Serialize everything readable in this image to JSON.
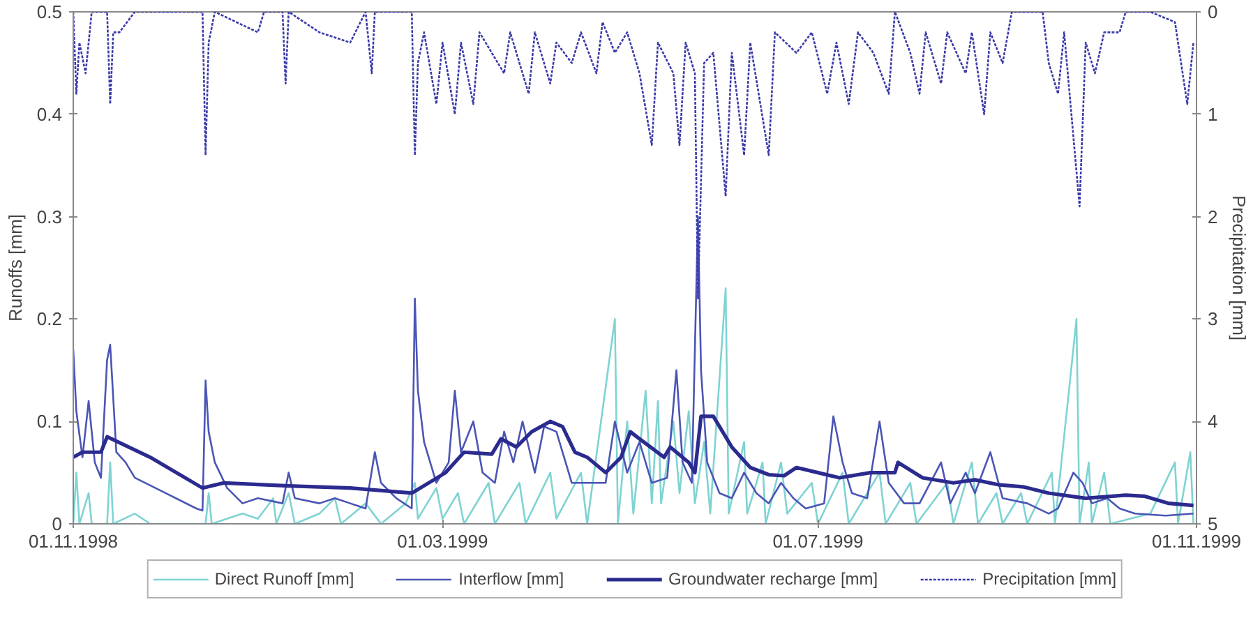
{
  "chart_data": {
    "type": "line",
    "ylabel": "Runoffs [mm]",
    "y2label": "Precipitation [mm]",
    "xlim": [
      "1998-11-01",
      "1999-11-01"
    ],
    "xticks": [
      {
        "value": "1998-11-01",
        "label": "01.11.1998"
      },
      {
        "value": "1999-03-01",
        "label": "01.03.1999"
      },
      {
        "value": "1999-07-01",
        "label": "01.07.1999"
      },
      {
        "value": "1999-11-01",
        "label": "01.11.1999"
      }
    ],
    "ylim": [
      0,
      0.5
    ],
    "yticks": [
      0,
      0.1,
      0.2,
      0.3,
      0.4,
      0.5
    ],
    "y2lim": [
      5,
      0
    ],
    "y2ticks": [
      0,
      1,
      2,
      3,
      4,
      5
    ],
    "grid": false,
    "legend": "bottom",
    "marker": "none",
    "series": [
      {
        "name": "Direct Runoff [mm]",
        "color": "#7fd3d3",
        "line_style": "solid",
        "x": [
          "1998-11-01",
          "1998-11-02",
          "1998-11-03",
          "1998-11-06",
          "1998-11-07",
          "1998-11-12",
          "1998-11-13",
          "1998-11-14",
          "1998-11-21",
          "1998-11-26",
          "1998-12-14",
          "1998-12-15",
          "1998-12-16",
          "1998-12-26",
          "1998-12-31",
          "1999-01-05",
          "1999-01-06",
          "1999-01-10",
          "1999-01-12",
          "1999-01-20",
          "1999-01-25",
          "1999-01-27",
          "1999-02-04",
          "1999-02-09",
          "1999-02-17",
          "1999-02-20",
          "1999-02-21",
          "1999-02-27",
          "1999-03-01",
          "1999-03-06",
          "1999-03-08",
          "1999-03-16",
          "1999-03-18",
          "1999-03-26",
          "1999-03-28",
          "1999-04-05",
          "1999-04-07",
          "1999-04-15",
          "1999-04-17",
          "1999-04-26",
          "1999-04-27",
          "1999-04-30",
          "1999-05-02",
          "1999-05-06",
          "1999-05-08",
          "1999-05-10",
          "1999-05-11",
          "1999-05-15",
          "1999-05-17",
          "1999-05-20",
          "1999-05-22",
          "1999-05-25",
          "1999-05-27",
          "1999-06-01",
          "1999-06-02",
          "1999-06-07",
          "1999-06-08",
          "1999-06-13",
          "1999-06-14",
          "1999-06-19",
          "1999-06-21",
          "1999-06-29",
          "1999-07-01",
          "1999-07-09",
          "1999-07-11",
          "1999-07-21",
          "1999-07-23",
          "1999-07-31",
          "1999-08-02",
          "1999-08-12",
          "1999-08-14",
          "1999-08-20",
          "1999-08-22",
          "1999-08-28",
          "1999-08-30",
          "1999-09-05",
          "1999-09-07",
          "1999-09-15",
          "1999-09-16",
          "1999-09-23",
          "1999-09-24",
          "1999-09-27",
          "1999-09-28",
          "1999-10-02",
          "1999-10-04",
          "1999-10-17",
          "1999-10-25",
          "1999-10-26",
          "1999-10-30",
          "1999-10-31"
        ],
        "values": [
          0,
          0.05,
          0,
          0.03,
          0,
          0,
          0.06,
          0,
          0.01,
          0,
          0,
          0.03,
          0,
          0.01,
          0.005,
          0.025,
          0,
          0.03,
          0,
          0.01,
          0.025,
          0,
          0.02,
          0,
          0.02,
          0.04,
          0.005,
          0.035,
          0.005,
          0.03,
          0,
          0.04,
          0,
          0.04,
          0,
          0.05,
          0.005,
          0.05,
          0,
          0.2,
          0,
          0.1,
          0.01,
          0.13,
          0.02,
          0.12,
          0.02,
          0.1,
          0.03,
          0.11,
          0.02,
          0.08,
          0.01,
          0.23,
          0.01,
          0.08,
          0.01,
          0.06,
          0,
          0.06,
          0.01,
          0.04,
          0,
          0.05,
          0,
          0.05,
          0,
          0.04,
          0,
          0.04,
          0,
          0.06,
          0,
          0.03,
          0,
          0.03,
          0,
          0.05,
          0,
          0.2,
          0,
          0.06,
          0,
          0.05,
          0,
          0.01,
          0.06,
          0,
          0.07,
          0
        ]
      },
      {
        "name": "Interflow [mm]",
        "color": "#4a55b5",
        "line_style": "solid",
        "x": [
          "1998-11-01",
          "1998-11-02",
          "1998-11-04",
          "1998-11-06",
          "1998-11-08",
          "1998-11-10",
          "1998-11-12",
          "1998-11-13",
          "1998-11-15",
          "1998-11-18",
          "1998-11-21",
          "1998-12-01",
          "1998-12-11",
          "1998-12-13",
          "1998-12-14",
          "1998-12-15",
          "1998-12-17",
          "1998-12-21",
          "1998-12-26",
          "1998-12-31",
          "1999-01-08",
          "1999-01-10",
          "1999-01-12",
          "1999-01-20",
          "1999-01-25",
          "1999-01-30",
          "1999-02-04",
          "1999-02-07",
          "1999-02-09",
          "1999-02-14",
          "1999-02-19",
          "1999-02-20",
          "1999-02-21",
          "1999-02-23",
          "1999-02-27",
          "1999-03-03",
          "1999-03-05",
          "1999-03-07",
          "1999-03-11",
          "1999-03-14",
          "1999-03-18",
          "1999-03-21",
          "1999-03-24",
          "1999-03-27",
          "1999-03-31",
          "1999-04-03",
          "1999-04-07",
          "1999-04-12",
          "1999-04-18",
          "1999-04-23",
          "1999-04-26",
          "1999-04-30",
          "1999-05-04",
          "1999-05-08",
          "1999-05-13",
          "1999-05-16",
          "1999-05-18",
          "1999-05-21",
          "1999-05-23",
          "1999-05-24",
          "1999-05-26",
          "1999-05-30",
          "1999-06-03",
          "1999-06-07",
          "1999-06-11",
          "1999-06-15",
          "1999-06-19",
          "1999-06-23",
          "1999-06-27",
          "1999-07-03",
          "1999-07-06",
          "1999-07-09",
          "1999-07-12",
          "1999-07-17",
          "1999-07-21",
          "1999-07-24",
          "1999-07-29",
          "1999-08-03",
          "1999-08-10",
          "1999-08-13",
          "1999-08-18",
          "1999-08-21",
          "1999-08-26",
          "1999-08-30",
          "1999-09-07",
          "1999-09-14",
          "1999-09-17",
          "1999-09-22",
          "1999-09-25",
          "1999-09-28",
          "1999-10-03",
          "1999-10-07",
          "1999-10-12",
          "1999-10-22",
          "1999-10-31"
        ],
        "values": [
          0.17,
          0.11,
          0.065,
          0.12,
          0.06,
          0.045,
          0.16,
          0.175,
          0.07,
          0.06,
          0.045,
          0.03,
          0.015,
          0.013,
          0.14,
          0.09,
          0.06,
          0.035,
          0.02,
          0.025,
          0.02,
          0.05,
          0.025,
          0.02,
          0.025,
          0.02,
          0.015,
          0.07,
          0.04,
          0.025,
          0.015,
          0.22,
          0.13,
          0.08,
          0.04,
          0.06,
          0.13,
          0.07,
          0.1,
          0.05,
          0.04,
          0.09,
          0.06,
          0.1,
          0.05,
          0.095,
          0.09,
          0.04,
          0.04,
          0.04,
          0.1,
          0.05,
          0.08,
          0.04,
          0.045,
          0.15,
          0.06,
          0.04,
          0.3,
          0.15,
          0.06,
          0.03,
          0.025,
          0.05,
          0.03,
          0.02,
          0.04,
          0.025,
          0.015,
          0.02,
          0.105,
          0.06,
          0.03,
          0.025,
          0.1,
          0.04,
          0.02,
          0.02,
          0.06,
          0.02,
          0.05,
          0.03,
          0.07,
          0.025,
          0.02,
          0.01,
          0.015,
          0.05,
          0.04,
          0.02,
          0.025,
          0.015,
          0.01,
          0.008,
          0.01
        ]
      },
      {
        "name": "Groundwater recharge [mm]",
        "color": "#2b2b8f",
        "line_style": "solid",
        "x": [
          "1998-11-01",
          "1998-11-04",
          "1998-11-10",
          "1998-11-12",
          "1998-11-26",
          "1998-12-13",
          "1998-12-20",
          "1999-01-10",
          "1999-01-30",
          "1999-02-19",
          "1999-03-02",
          "1999-03-08",
          "1999-03-17",
          "1999-03-20",
          "1999-03-25",
          "1999-03-30",
          "1999-04-05",
          "1999-04-09",
          "1999-04-13",
          "1999-04-17",
          "1999-04-23",
          "1999-04-28",
          "1999-05-01",
          "1999-05-04",
          "1999-05-12",
          "1999-05-14",
          "1999-05-20",
          "1999-05-22",
          "1999-05-24",
          "1999-05-28",
          "1999-06-03",
          "1999-06-09",
          "1999-06-15",
          "1999-06-20",
          "1999-06-24",
          "1999-07-01",
          "1999-07-08",
          "1999-07-18",
          "1999-07-26",
          "1999-07-27",
          "1999-08-04",
          "1999-08-14",
          "1999-08-21",
          "1999-08-29",
          "1999-09-06",
          "1999-09-14",
          "1999-09-26",
          "1999-10-09",
          "1999-10-15",
          "1999-10-23",
          "1999-10-31"
        ],
        "values": [
          0.065,
          0.07,
          0.07,
          0.085,
          0.065,
          0.035,
          0.04,
          0.037,
          0.035,
          0.03,
          0.05,
          0.07,
          0.068,
          0.083,
          0.075,
          0.09,
          0.1,
          0.095,
          0.07,
          0.065,
          0.05,
          0.065,
          0.09,
          0.083,
          0.065,
          0.075,
          0.06,
          0.05,
          0.105,
          0.105,
          0.075,
          0.055,
          0.048,
          0.047,
          0.055,
          0.05,
          0.045,
          0.05,
          0.05,
          0.06,
          0.045,
          0.04,
          0.043,
          0.038,
          0.036,
          0.03,
          0.025,
          0.028,
          0.027,
          0.02,
          0.018
        ]
      },
      {
        "name": "Precipitation [mm]",
        "color": "#3a3aaa",
        "line_style": "dotted",
        "axis": "y2",
        "x": [
          "1998-11-01",
          "1998-11-02",
          "1998-11-03",
          "1998-11-05",
          "1998-11-07",
          "1998-11-12",
          "1998-11-13",
          "1998-11-14",
          "1998-11-16",
          "1998-11-21",
          "1998-12-13",
          "1998-12-14",
          "1998-12-15",
          "1998-12-17",
          "1998-12-31",
          "1999-01-02",
          "1999-01-08",
          "1999-01-09",
          "1999-01-10",
          "1999-01-20",
          "1999-01-30",
          "1999-02-04",
          "1999-02-06",
          "1999-02-07",
          "1999-02-19",
          "1999-02-20",
          "1999-02-21",
          "1999-02-23",
          "1999-02-27",
          "1999-03-01",
          "1999-03-05",
          "1999-03-07",
          "1999-03-11",
          "1999-03-13",
          "1999-03-21",
          "1999-03-23",
          "1999-03-29",
          "1999-03-31",
          "1999-04-05",
          "1999-04-07",
          "1999-04-12",
          "1999-04-15",
          "1999-04-20",
          "1999-04-22",
          "1999-04-26",
          "1999-04-30",
          "1999-05-04",
          "1999-05-08",
          "1999-05-10",
          "1999-05-15",
          "1999-05-17",
          "1999-05-19",
          "1999-05-22",
          "1999-05-23",
          "1999-05-25",
          "1999-05-28",
          "1999-06-01",
          "1999-06-03",
          "1999-06-07",
          "1999-06-09",
          "1999-06-15",
          "1999-06-17",
          "1999-06-24",
          "1999-06-29",
          "1999-07-04",
          "1999-07-07",
          "1999-07-11",
          "1999-07-14",
          "1999-07-19",
          "1999-07-24",
          "1999-07-26",
          "1999-07-31",
          "1999-08-03",
          "1999-08-05",
          "1999-08-10",
          "1999-08-12",
          "1999-08-18",
          "1999-08-20",
          "1999-08-24",
          "1999-08-26",
          "1999-08-30",
          "1999-09-02",
          "1999-09-12",
          "1999-09-14",
          "1999-09-17",
          "1999-09-19",
          "1999-09-24",
          "1999-09-26",
          "1999-09-29",
          "1999-10-02",
          "1999-10-07",
          "1999-10-09",
          "1999-10-17",
          "1999-10-25",
          "1999-10-29",
          "1999-10-31"
        ],
        "values": [
          0,
          0.8,
          0.3,
          0.6,
          0,
          0,
          0.9,
          0.2,
          0.2,
          0,
          0,
          1.4,
          0.3,
          0,
          0.2,
          0,
          0,
          0.7,
          0,
          0.2,
          0.3,
          0,
          0.6,
          0,
          0,
          1.4,
          0.5,
          0.2,
          0.9,
          0.3,
          1.0,
          0.3,
          0.9,
          0.2,
          0.6,
          0.2,
          0.8,
          0.2,
          0.7,
          0.3,
          0.5,
          0.2,
          0.6,
          0.1,
          0.4,
          0.2,
          0.6,
          1.3,
          0.3,
          0.6,
          1.3,
          0.3,
          0.6,
          2.8,
          0.5,
          0.4,
          1.8,
          0.4,
          1.4,
          0.3,
          1.4,
          0.2,
          0.4,
          0.2,
          0.8,
          0.3,
          0.9,
          0.2,
          0.4,
          0.8,
          0,
          0.4,
          0.8,
          0.2,
          0.7,
          0.2,
          0.6,
          0.2,
          1.0,
          0.2,
          0.5,
          0,
          0,
          0.5,
          0.8,
          0.2,
          1.9,
          0.3,
          0.6,
          0.2,
          0.2,
          0,
          0,
          0.1,
          0.9,
          0.3
        ]
      }
    ]
  }
}
